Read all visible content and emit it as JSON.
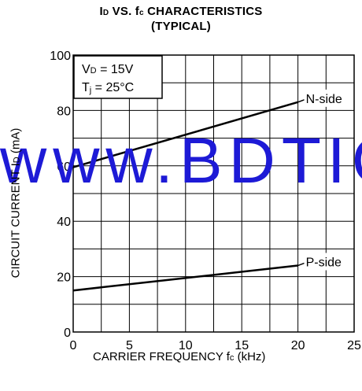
{
  "title_line1": {
    "pre": "I",
    "sub": "D",
    "mid": " VS. f",
    "sub2": "c",
    "post": " CHARACTERISTICS"
  },
  "title_line2": "(TYPICAL)",
  "xlabel": {
    "pre": "CARRIER FREQUENCY  f",
    "sub": "c",
    "post": " (kHz)"
  },
  "ylabel": {
    "pre": "CIRCUIT CURRENT  I",
    "sub": "D",
    "post": " (mA)"
  },
  "conditions": [
    {
      "pre": "V",
      "sub": "D",
      "post": " = 15V"
    },
    {
      "pre": "T",
      "sub": "j",
      "post": " = 25°C"
    }
  ],
  "watermark": "www.BDTIC.com",
  "chart_data": {
    "type": "line",
    "title": "ID VS. fc CHARACTERISTICS (TYPICAL)",
    "xlabel": "CARRIER FREQUENCY fc (kHz)",
    "ylabel": "CIRCUIT CURRENT ID (mA)",
    "xlim": [
      0,
      25
    ],
    "ylim": [
      0,
      100
    ],
    "xticks": [
      0,
      5,
      10,
      15,
      20,
      25
    ],
    "yticks": [
      0,
      20,
      40,
      60,
      80,
      100
    ],
    "grid": true,
    "series": [
      {
        "name": "N-side",
        "x": [
          0,
          20
        ],
        "y": [
          59.5,
          83
        ]
      },
      {
        "name": "P-side",
        "x": [
          0,
          20
        ],
        "y": [
          15,
          24
        ]
      }
    ]
  }
}
